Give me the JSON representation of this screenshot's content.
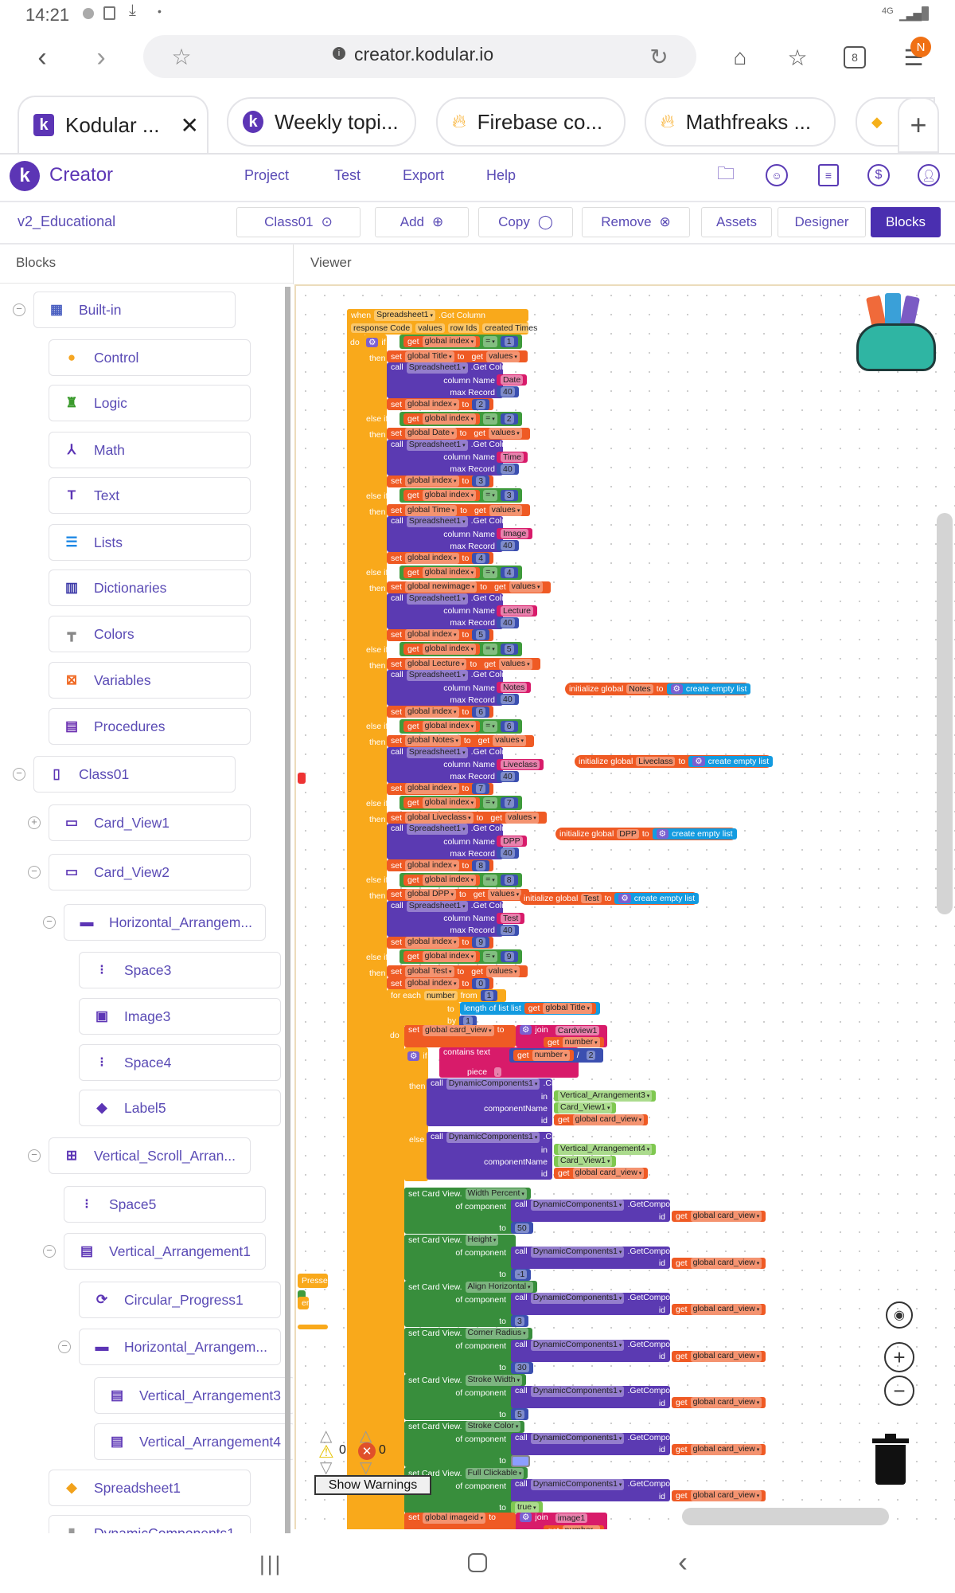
{
  "status_bar": {
    "time": "14:21",
    "network": "4G"
  },
  "browser": {
    "url": "creator.kodular.io",
    "tab_count": "8",
    "profile_badge": "N",
    "tabs": [
      {
        "title": "Kodular ...",
        "active": true
      },
      {
        "title": "Weekly topi..."
      },
      {
        "title": "Firebase co..."
      },
      {
        "title": "Mathfreaks ..."
      }
    ]
  },
  "app": {
    "name": "Creator",
    "menu": [
      "Project",
      "Test",
      "Export",
      "Help"
    ]
  },
  "toolbar": {
    "project": "v2_Educational",
    "screen": "Class01",
    "add": "Add",
    "copy": "Copy",
    "remove": "Remove",
    "assets": "Assets",
    "designer": "Designer",
    "blocks": "Blocks"
  },
  "panels": {
    "blocks": "Blocks",
    "viewer": "Viewer"
  },
  "sidebar": [
    {
      "label": "Built-in",
      "level": 0,
      "icon": "builtin",
      "toggle": "collapse"
    },
    {
      "label": "Control",
      "level": 1,
      "icon": "control"
    },
    {
      "label": "Logic",
      "level": 1,
      "icon": "logic"
    },
    {
      "label": "Math",
      "level": 1,
      "icon": "math"
    },
    {
      "label": "Text",
      "level": 1,
      "icon": "text"
    },
    {
      "label": "Lists",
      "level": 1,
      "icon": "lists"
    },
    {
      "label": "Dictionaries",
      "level": 1,
      "icon": "dictionaries"
    },
    {
      "label": "Colors",
      "level": 1,
      "icon": "colors"
    },
    {
      "label": "Variables",
      "level": 1,
      "icon": "variables"
    },
    {
      "label": "Procedures",
      "level": 1,
      "icon": "procedures"
    },
    {
      "label": "Class01",
      "level": 0,
      "icon": "screen",
      "toggle": "collapse"
    },
    {
      "label": "Card_View1",
      "level": 1,
      "icon": "card",
      "toggle": "expand"
    },
    {
      "label": "Card_View2",
      "level": 1,
      "icon": "card",
      "toggle": "collapse"
    },
    {
      "label": "Horizontal_Arrangem...",
      "level": 2,
      "icon": "horizontal",
      "toggle": "collapse"
    },
    {
      "label": "Space3",
      "level": 3,
      "icon": "space"
    },
    {
      "label": "Image3",
      "level": 3,
      "icon": "image"
    },
    {
      "label": "Space4",
      "level": 3,
      "icon": "space"
    },
    {
      "label": "Label5",
      "level": 3,
      "icon": "label"
    },
    {
      "label": "Vertical_Scroll_Arran...",
      "level": 1,
      "icon": "vscroll",
      "toggle": "collapse"
    },
    {
      "label": "Space5",
      "level": 2,
      "icon": "space"
    },
    {
      "label": "Vertical_Arrangement1",
      "level": 2,
      "icon": "vertical",
      "toggle": "collapse"
    },
    {
      "label": "Circular_Progress1",
      "level": 3,
      "icon": "progress"
    },
    {
      "label": "Horizontal_Arrangem...",
      "level": 3,
      "icon": "horizontal",
      "toggle": "collapse"
    },
    {
      "label": "Vertical_Arrangement3",
      "level": 4,
      "icon": "vertical"
    },
    {
      "label": "Vertical_Arrangement4",
      "level": 4,
      "icon": "vertical"
    },
    {
      "label": "Spreadsheet1",
      "level": 1,
      "icon": "spreadsheet"
    },
    {
      "label": "DynamicComponents1",
      "level": 1,
      "icon": "dynamic"
    }
  ],
  "blocks": {
    "lb": {
      "when": "when",
      "do": "do",
      "if": "if",
      "else_if": "else if",
      "then": "then",
      "else": "else",
      "set": "set",
      "get": "get",
      "to": "to",
      "call": "call",
      "eq": "=",
      "get_column": ".Get Column",
      "column_name": "column Name",
      "max_record": "max Record",
      "values": "values",
      "global_index": "global index",
      "spreadsheet": "Spreadsheet1",
      "for_each": "for each",
      "from": "from",
      "by": "by",
      "number": "number",
      "length_of_list": "length of list  list",
      "join": "join",
      "contains_text": "contains text",
      "piece": "piece",
      "div": "/",
      "dyn": "DynamicComponents1",
      "create": ".Create",
      "in": "in",
      "component_name": "componentName",
      "id": "id",
      "get_component": ".GetComponent",
      "set_card_view": "set Card View.",
      "of_component": "of component",
      "init_global": "initialize global",
      "create_empty_list": "create empty list"
    },
    "event": {
      "name": ".Got Column",
      "params": [
        "response Code",
        "values",
        "row Ids",
        "created Times"
      ]
    },
    "max_record": "40",
    "branches": [
      {
        "index": "1",
        "var": "global Title",
        "column": "Date",
        "next": "2"
      },
      {
        "index": "2",
        "var": "global Date",
        "column": "Time",
        "next": "3"
      },
      {
        "index": "3",
        "var": "global Time",
        "column": "Image",
        "next": "4"
      },
      {
        "index": "4",
        "var": "global newimage",
        "column": "Lecture",
        "next": "5"
      },
      {
        "index": "5",
        "var": "global Lecture",
        "column": "Notes",
        "next": "6"
      },
      {
        "index": "6",
        "var": "global Notes",
        "column": "Liveclass",
        "next": "7"
      },
      {
        "index": "7",
        "var": "global Liveclass",
        "column": "DPP",
        "next": "8"
      },
      {
        "index": "8",
        "var": "global DPP",
        "column": "Test",
        "next": "9"
      },
      {
        "index": "9",
        "var": "global Test",
        "next": "0"
      }
    ],
    "loop": {
      "from": "1",
      "by": "1",
      "list_var": "global Title",
      "card_var": "global card_view",
      "card_prefix": "Cardview1",
      "divisor": "2",
      "piece": ".",
      "then_in": "Vertical_Arrangement3",
      "else_in": "Vertical_Arrangement4",
      "component": "Card_View1"
    },
    "card_props": [
      {
        "prop": "Width Percent",
        "value": "50",
        "type": "number"
      },
      {
        "prop": "Height",
        "value": "-1",
        "type": "number"
      },
      {
        "prop": "Align Horizontal",
        "value": "3",
        "type": "number"
      },
      {
        "prop": "Corner Radius",
        "value": "30",
        "type": "number"
      },
      {
        "prop": "Stroke Width",
        "value": "5",
        "type": "number"
      },
      {
        "prop": "Stroke Color",
        "value": "",
        "type": "color",
        "color": "#8c9eff"
      },
      {
        "prop": "Full Clickable",
        "value": "true",
        "type": "logic"
      }
    ],
    "imageid": {
      "var": "global imageid",
      "prefix": "image1"
    },
    "globals": [
      "Notes",
      "Liveclass",
      "DPP",
      "Test"
    ],
    "partial": {
      "pressed": "Pressed",
      "en": "en"
    }
  },
  "warnings": {
    "warnings": "0",
    "errors": "0",
    "button": "Show Warnings"
  },
  "colors": {
    "brand": "#5c35b5",
    "control": "#f9a91b",
    "variable": "#ef5a24",
    "component": "#5b3ab2",
    "logic": "#3f9b3c",
    "math": "#3b4fb0",
    "text": "#d81b6a",
    "list": "#139be0",
    "setter": "#388e3c",
    "arg": "#7fc850"
  }
}
